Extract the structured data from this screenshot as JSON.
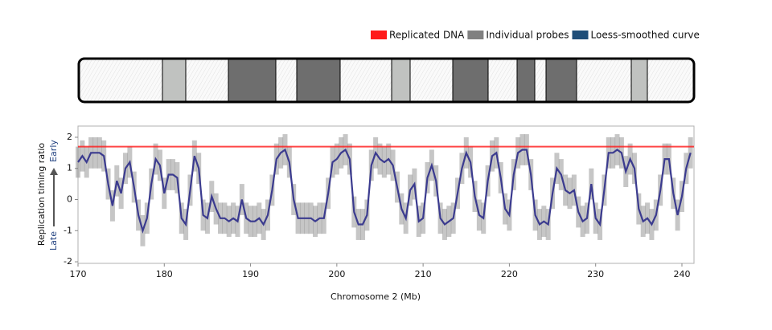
{
  "chart_data": {
    "type": "line",
    "x_label": "Chromosome 2 (Mb)",
    "y_label": "Replication timing ratio",
    "y_label_low": "Late",
    "y_label_high": "Early",
    "xlim": [
      170,
      241.4
    ],
    "ylim": [
      -2.05,
      2.36
    ],
    "xticks": [
      170,
      180,
      190,
      200,
      210,
      220,
      230,
      240
    ],
    "yticks": [
      -2,
      -1,
      0,
      1,
      2
    ],
    "series": [
      {
        "name": "Replicated DNA",
        "color": "#ff1a1a",
        "value": 1.7
      },
      {
        "name": "Individual probes",
        "color": "#808080",
        "spread": 0.5
      },
      {
        "name": "Loess-smoothed curve",
        "color": "#3b3b8f",
        "x": [
          170,
          170.5,
          171,
          171.5,
          172,
          172.5,
          173,
          173.5,
          174,
          174.5,
          175,
          175.5,
          176,
          176.5,
          177,
          177.5,
          178,
          178.5,
          179,
          179.5,
          180,
          180.5,
          181,
          181.5,
          182,
          182.5,
          183,
          183.5,
          184,
          184.5,
          185,
          185.5,
          186,
          186.5,
          187,
          187.5,
          188,
          188.5,
          189,
          189.5,
          190,
          190.5,
          191,
          191.5,
          192,
          192.5,
          193,
          193.5,
          194,
          194.5,
          195,
          195.5,
          196,
          196.5,
          197,
          197.5,
          198,
          198.5,
          199,
          199.5,
          200,
          200.5,
          201,
          201.5,
          202,
          202.5,
          203,
          203.5,
          204,
          204.5,
          205,
          205.5,
          206,
          206.5,
          207,
          207.5,
          208,
          208.5,
          209,
          209.5,
          210,
          210.5,
          211,
          211.5,
          212,
          212.5,
          213,
          213.5,
          214,
          214.5,
          215,
          215.5,
          216,
          216.5,
          217,
          217.5,
          218,
          218.5,
          219,
          219.5,
          220,
          220.5,
          221,
          221.5,
          222,
          222.5,
          223,
          223.5,
          224,
          224.5,
          225,
          225.5,
          226,
          226.5,
          227,
          227.5,
          228,
          228.5,
          229,
          229.5,
          230,
          230.5,
          231,
          231.5,
          232,
          232.5,
          233,
          233.5,
          234,
          234.5,
          235,
          235.5,
          236,
          236.5,
          237,
          237.5,
          238,
          238.5,
          239,
          239.5,
          240,
          240.5,
          241
        ],
        "values": [
          1.2,
          1.4,
          1.2,
          1.5,
          1.5,
          1.5,
          1.4,
          0.5,
          -0.2,
          0.6,
          0.2,
          1.0,
          1.2,
          0.4,
          -0.5,
          -1.0,
          -0.6,
          0.5,
          1.3,
          1.1,
          0.2,
          0.8,
          0.8,
          0.7,
          -0.6,
          -0.8,
          0.3,
          1.4,
          1.0,
          -0.5,
          -0.6,
          0.1,
          -0.3,
          -0.6,
          -0.6,
          -0.7,
          -0.6,
          -0.7,
          0.0,
          -0.6,
          -0.7,
          -0.7,
          -0.6,
          -0.8,
          -0.5,
          0.3,
          1.3,
          1.5,
          1.6,
          1.2,
          0.0,
          -0.6,
          -0.6,
          -0.6,
          -0.6,
          -0.7,
          -0.6,
          -0.6,
          0.2,
          1.2,
          1.3,
          1.5,
          1.6,
          1.3,
          -0.4,
          -0.8,
          -0.8,
          -0.5,
          1.1,
          1.5,
          1.3,
          1.2,
          1.3,
          1.1,
          0.4,
          -0.3,
          -0.6,
          0.3,
          0.5,
          -0.7,
          -0.6,
          0.7,
          1.1,
          0.6,
          -0.6,
          -0.8,
          -0.7,
          -0.6,
          0.2,
          1.0,
          1.5,
          1.2,
          0.1,
          -0.5,
          -0.6,
          0.6,
          1.4,
          1.5,
          0.7,
          -0.3,
          -0.5,
          0.8,
          1.5,
          1.6,
          1.6,
          0.8,
          -0.5,
          -0.8,
          -0.7,
          -0.8,
          0.2,
          1.0,
          0.8,
          0.3,
          0.2,
          0.3,
          -0.4,
          -0.7,
          -0.6,
          0.5,
          -0.6,
          -0.8,
          0.3,
          1.5,
          1.5,
          1.6,
          1.5,
          0.9,
          1.3,
          1.0,
          -0.3,
          -0.7,
          -0.6,
          -0.8,
          -0.5,
          0.3,
          1.3,
          1.3,
          0.2,
          -0.5,
          0.1,
          1.0,
          1.5
        ]
      }
    ]
  }
}
